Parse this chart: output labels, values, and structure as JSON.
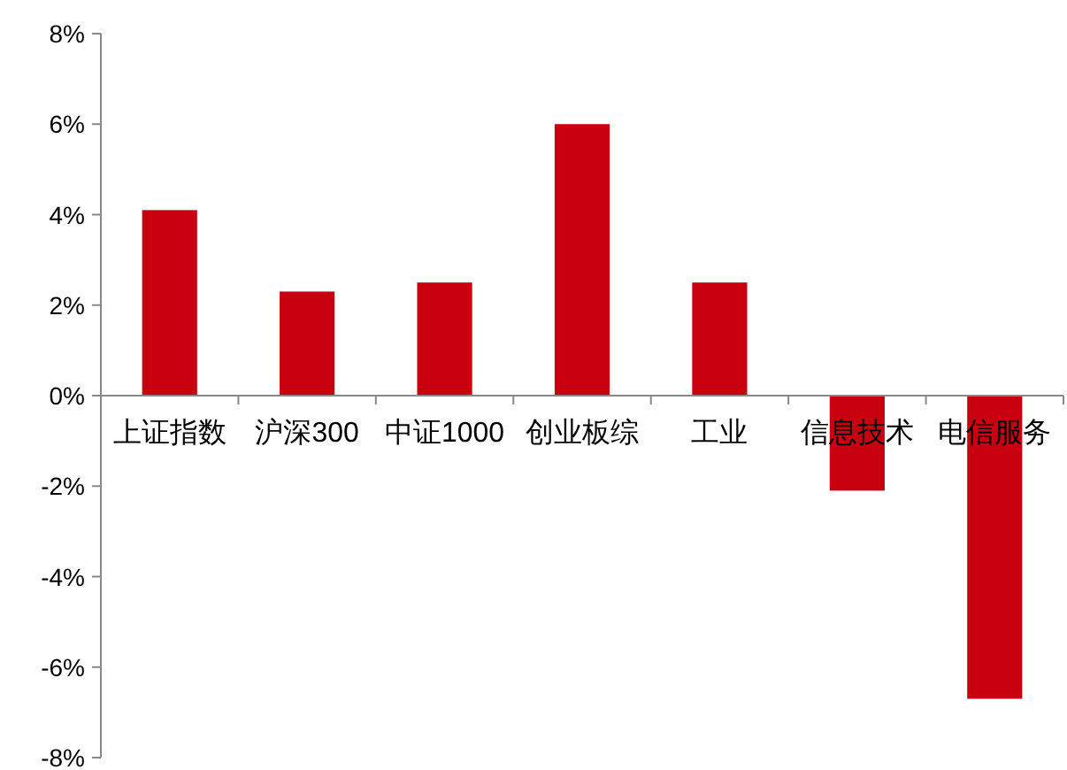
{
  "chart_data": {
    "type": "bar",
    "categories": [
      "上证指数",
      "沪深300",
      "中证1000",
      "创业板综",
      "工业",
      "信息技术",
      "电信服务"
    ],
    "values": [
      4.1,
      2.3,
      2.5,
      6.0,
      2.5,
      -2.1,
      -6.7
    ],
    "color": "#c8000f",
    "ylim": [
      -8,
      8
    ],
    "yticks": [
      {
        "value": -8,
        "label": "-8%"
      },
      {
        "value": -6,
        "label": "-6%"
      },
      {
        "value": -4,
        "label": "-4%"
      },
      {
        "value": -2,
        "label": "-2%"
      },
      {
        "value": 0,
        "label": "0%"
      },
      {
        "value": 2,
        "label": "2%"
      },
      {
        "value": 4,
        "label": "4%"
      },
      {
        "value": 6,
        "label": "6%"
      },
      {
        "value": 8,
        "label": "8%"
      }
    ],
    "grid": false
  }
}
